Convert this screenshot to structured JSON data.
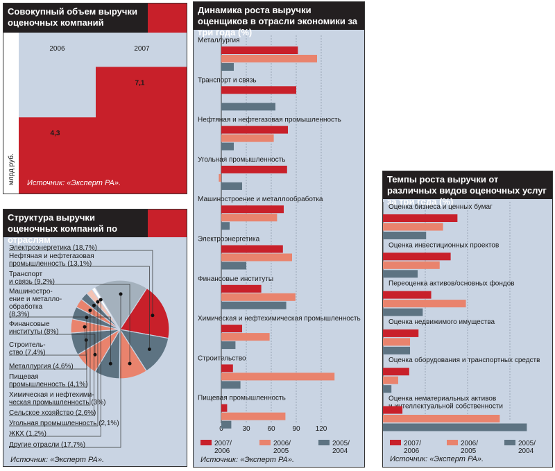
{
  "colors": {
    "c2007": "#c8202a",
    "c2006": "#e9836d",
    "c2005": "#5d7382",
    "bg": "#c9d4e3",
    "dark": "#231f20"
  },
  "panel1": {
    "title": "Совокупный объем выручки оценочных компаний",
    "source": "Источник: «Эксперт РА».",
    "unit": "млрд руб.",
    "chart_data": {
      "type": "bar",
      "categories": [
        "2006",
        "2007"
      ],
      "values": [
        4.3,
        7.1
      ],
      "value_labels": [
        "4,3",
        "7,1"
      ],
      "ylabel": "млрд руб."
    }
  },
  "panel2": {
    "title": "Структура выручки оценочных компаний по отраслям",
    "source": "Источник: «Эксперт РА».",
    "chart_data": {
      "type": "pie",
      "slices": [
        {
          "label": "Электроэнергетика (18,7%)",
          "value": 18.7,
          "color": "#c8202a"
        },
        {
          "label": "Нефтяная и нефтегазовая промышленность (13,1%)",
          "value": 13.1,
          "color": "#5d7382"
        },
        {
          "label": "Транспорт и связь (9,2%)",
          "value": 9.2,
          "color": "#e9836d"
        },
        {
          "label": "Машиностроение и металлообработка (8,3%)",
          "value": 8.3,
          "color": "#5d7382"
        },
        {
          "label": "Финансовые институты (8%)",
          "value": 8.0,
          "color": "#e9836d"
        },
        {
          "label": "Строительство (7,4%)",
          "value": 7.4,
          "color": "#5d7382"
        },
        {
          "label": "Металлургия (4,6%)",
          "value": 4.6,
          "color": "#e9836d"
        },
        {
          "label": "Пищевая промышленность (4,1%)",
          "value": 4.1,
          "color": "#5d7382"
        },
        {
          "label": "Химическая и нефтехимическая промышленность (3%)",
          "value": 3.0,
          "color": "#e9836d"
        },
        {
          "label": "Сельское хозяйство (2,6%)",
          "value": 2.6,
          "color": "#5d7382"
        },
        {
          "label": "Угольная промышленность (2,1%)",
          "value": 2.1,
          "color": "#f3c3b5"
        },
        {
          "label": "ЖКХ (1,2%)",
          "value": 1.2,
          "color": "#ffffff"
        },
        {
          "label": "Другие отрасли (17,7%)",
          "value": 17.7,
          "color": "#a4b1bd"
        }
      ]
    },
    "labels": [
      "Электроэнергетика (18,7%)",
      "Нефтяная и нефтегазовая\nпромышленность (13,1%)",
      "Транспорт\nи связь (9,2%)",
      "Машиностро-\nение и металло-\nобработка\n(8,3%)",
      "Финансовые\nинституты (8%)",
      "Строитель-\nство (7,4%)",
      "Металлургия (4,6%)",
      "Пищевая\nпромышленность (4,1%)",
      "Химическая и нефтехими-\nческая промышленность (3%)",
      "Сельское хозяйство (2,6%)",
      "Угольная промышленность (2,1%)",
      "ЖКХ (1,2%)",
      "Другие отрасли (17,7%)"
    ]
  },
  "panel3": {
    "title": "Динамика роста выручки оценщиков в отрасли экономики за три года (%)",
    "source": "Источник: «Эксперт РА».",
    "chart_data": {
      "type": "bar",
      "orientation": "horizontal",
      "categories": [
        "Металлургия",
        "Транспорт и связь",
        "Нефтяная и нефтегазовая промышленность",
        "Угольная промышленность",
        "Машиностроение и металлообработка",
        "Электроэнергетика",
        "Финансовые институты",
        "Химическая и нефтехимическая промышленность",
        "Строительство",
        "Пищевая промышленность"
      ],
      "series": [
        {
          "name": "2007/2006",
          "values": [
            92,
            90,
            80,
            79,
            75,
            74,
            48,
            25,
            14,
            7
          ]
        },
        {
          "name": "2006/2005",
          "values": [
            115,
            0,
            63,
            -3,
            67,
            85,
            89,
            58,
            136,
            77
          ]
        },
        {
          "name": "2005/2004",
          "values": [
            15,
            65,
            15,
            25,
            10,
            30,
            78,
            17,
            23,
            12
          ]
        }
      ],
      "xlim": [
        0,
        140
      ],
      "ticks": [
        "0",
        "30",
        "60",
        "90",
        "120"
      ],
      "tick_values": [
        0,
        30,
        60,
        90,
        120
      ]
    },
    "legend": [
      "2007/\n2006",
      "2006/\n2005",
      "2005/\n2004"
    ]
  },
  "panel4": {
    "title": "Темпы роста выручки от различных видов оценочных услуг за три года (%)",
    "source": "Источник: «Эксперт РА».",
    "chart_data": {
      "type": "bar",
      "orientation": "horizontal",
      "categories": [
        "Оценка бизнеса и ценных бумаг",
        "Оценка инвестиционных проектов",
        "Переоценка активов/основных фондов",
        "Оценка недвижимого имущества",
        "Оценка оборудования и транспортных средств",
        "Оценка нематериальных активов и интеллектуальной собственности"
      ],
      "category_labels": [
        "Оценка бизнеса и ценных бумаг",
        "Оценка инвестиционных проектов",
        "Переоценка активов/основных фондов",
        "Оценка недвижимого имущества",
        "Оценка оборудования и транспортных средств",
        "Оценка нематериальных активов\nи интеллектуальной собственности"
      ],
      "series": [
        {
          "name": "2007/2006",
          "values": [
            88,
            80,
            57,
            42,
            31,
            23
          ]
        },
        {
          "name": "2006/2005",
          "values": [
            71,
            67,
            98,
            32,
            18,
            138
          ]
        },
        {
          "name": "2005/2004",
          "values": [
            51,
            41,
            47,
            32,
            10,
            170
          ]
        }
      ],
      "xlim": [
        0,
        190
      ],
      "ticks": [
        "50",
        "100",
        "150"
      ],
      "tick_values": [
        50,
        100,
        150
      ]
    },
    "legend": [
      "2007/\n2006",
      "2006/\n2005",
      "2005/\n2004"
    ]
  }
}
